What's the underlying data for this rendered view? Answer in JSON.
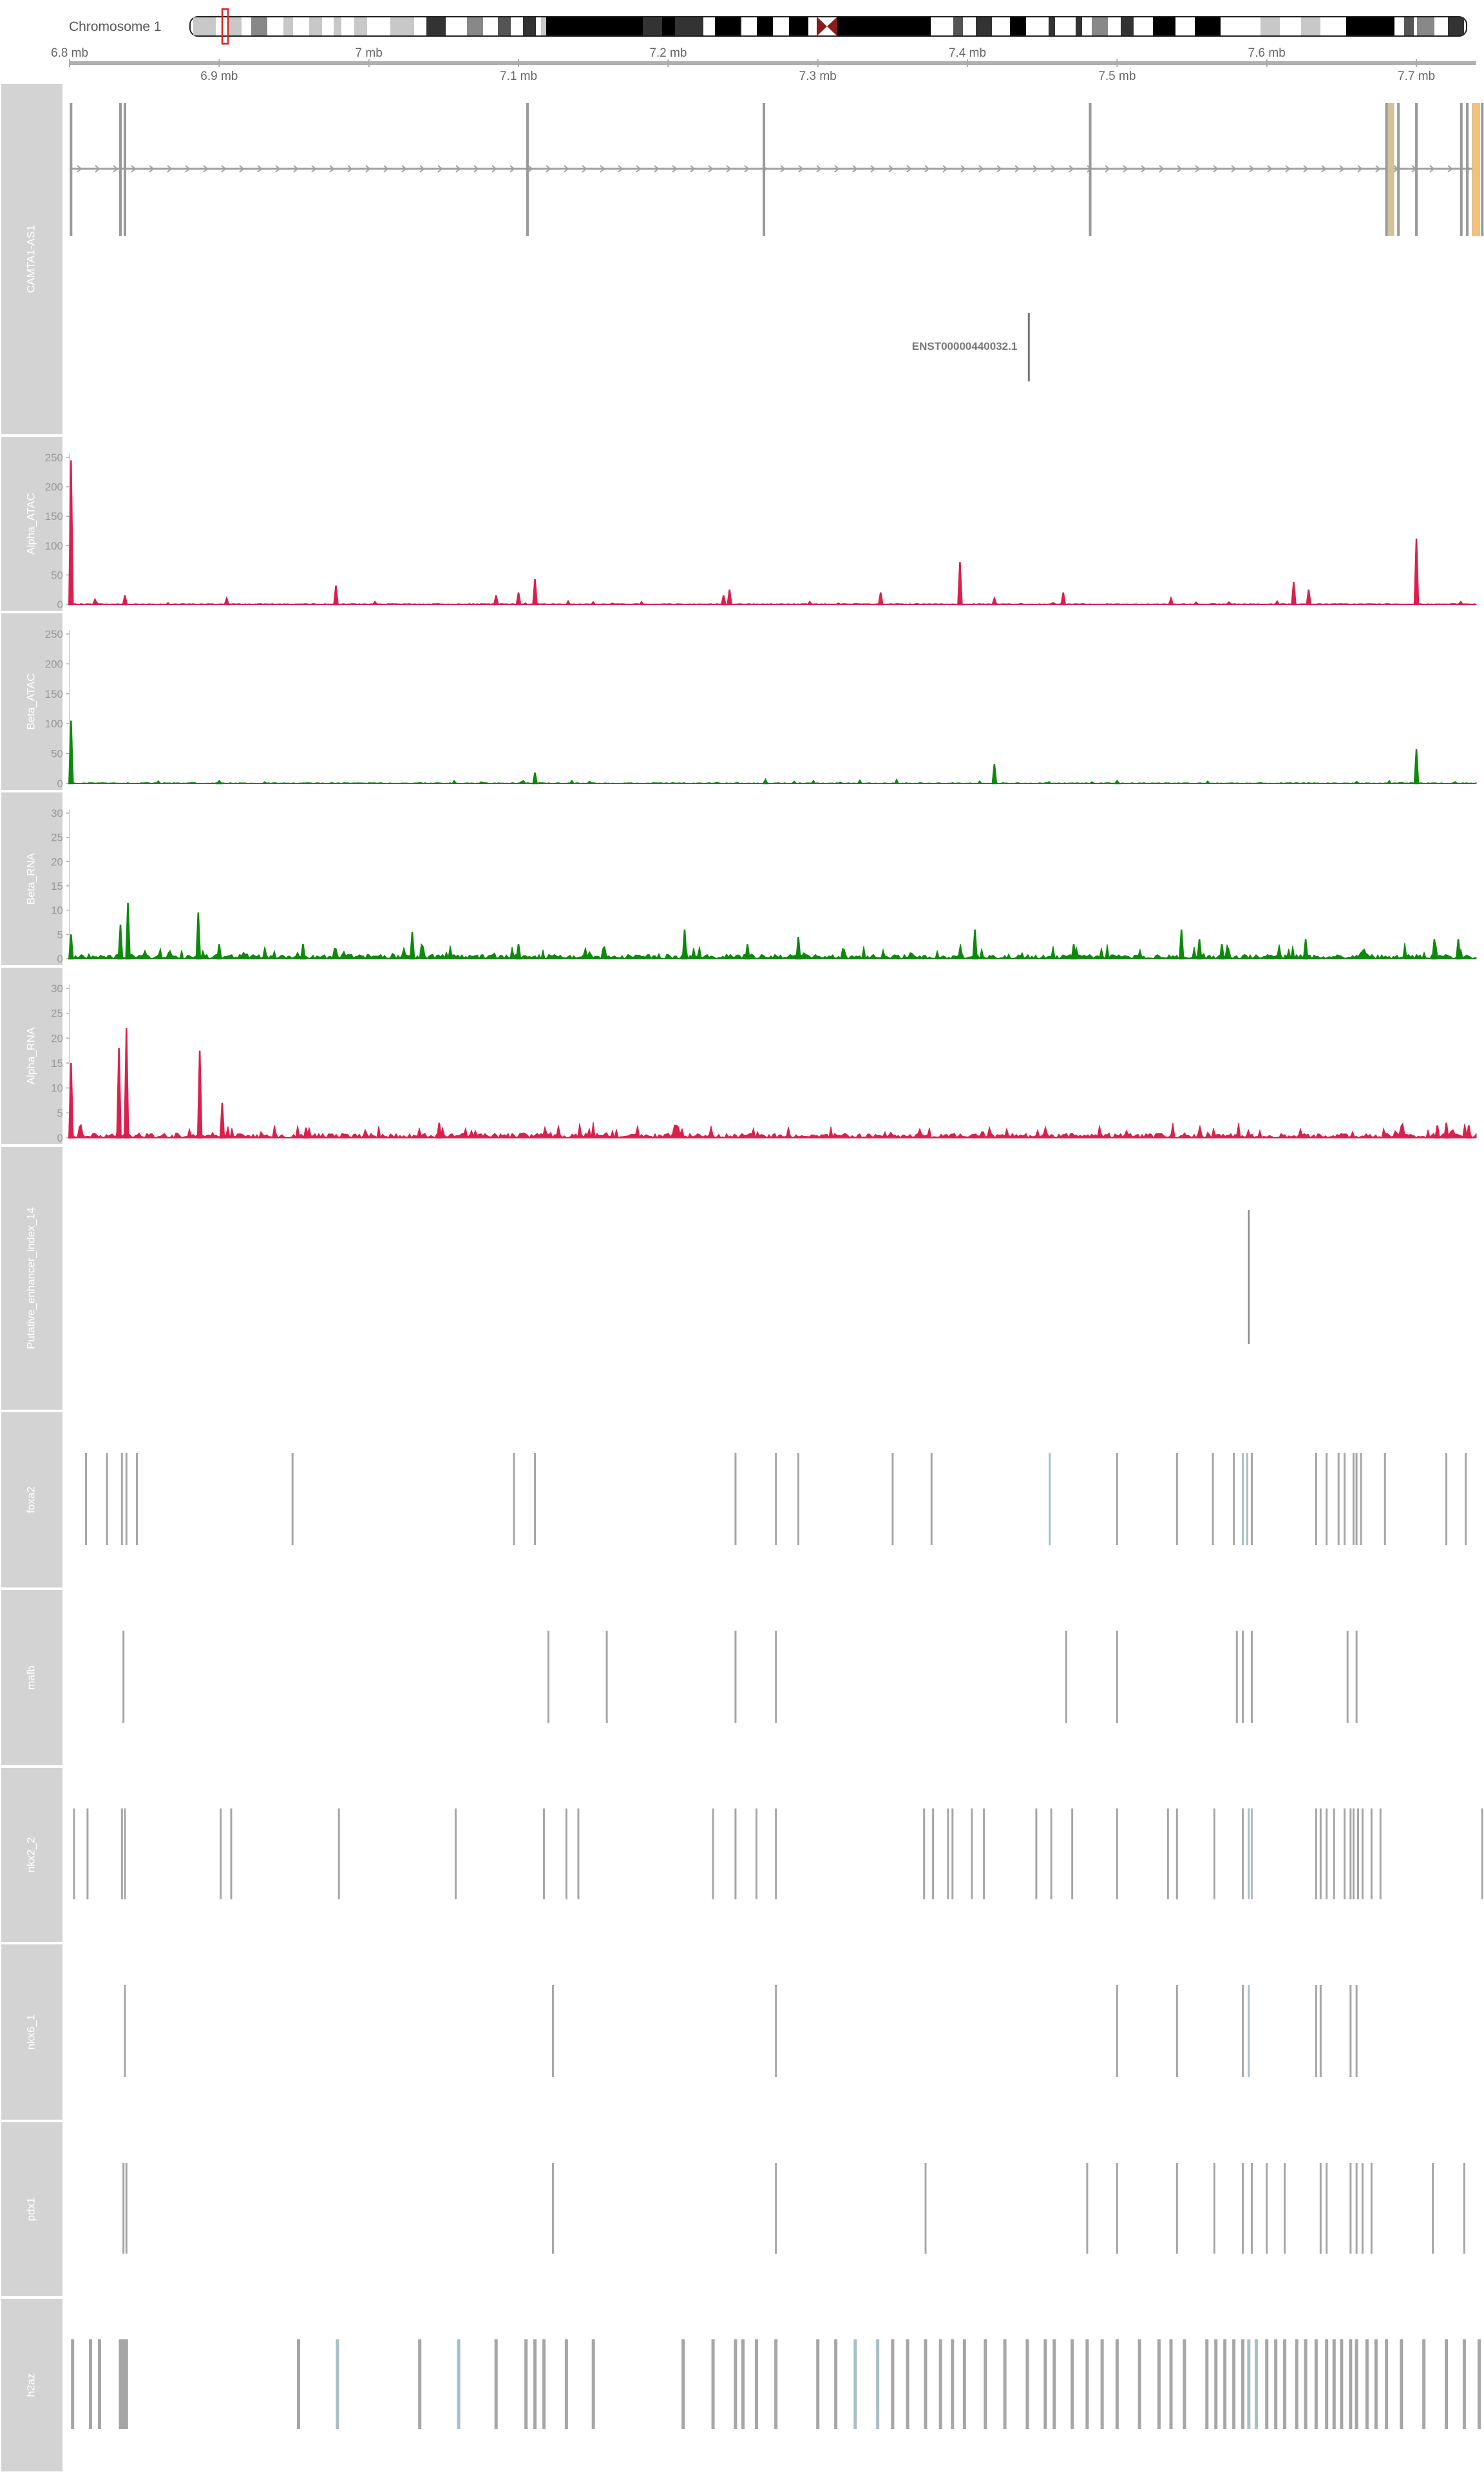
{
  "chromosome": {
    "label": "Chromosome 1",
    "start_mb": 6.8,
    "end_mb": 7.74,
    "ticks": [
      {
        "pos": 6.8,
        "label": "6.8 mb"
      },
      {
        "pos": 6.9,
        "label": "6.9 mb"
      },
      {
        "pos": 7.0,
        "label": "7 mb"
      },
      {
        "pos": 7.1,
        "label": "7.1 mb"
      },
      {
        "pos": 7.2,
        "label": "7.2 mb"
      },
      {
        "pos": 7.3,
        "label": "7.3 mb"
      },
      {
        "pos": 7.4,
        "label": "7.4 mb"
      },
      {
        "pos": 7.5,
        "label": "7.5 mb"
      },
      {
        "pos": 7.6,
        "label": "7.6 mb"
      },
      {
        "pos": 7.7,
        "label": "7.7 mb"
      }
    ]
  },
  "colors": {
    "panel_bg": "#d3d3d3",
    "panel_text": "#ffffff",
    "alpha": "#dc1f4c",
    "beta": "#0b8a0b",
    "feature": "#a6a6a6",
    "feature_blue": "#a9bfc8",
    "utr": "#f5c078",
    "enhancer_line": "#888888"
  },
  "tracks": [
    {
      "id": "gene",
      "label": "CAMTA1-AS1"
    },
    {
      "id": "alpha_atac",
      "label": "Alpha_ATAC"
    },
    {
      "id": "beta_atac",
      "label": "Beta_ATAC"
    },
    {
      "id": "beta_rna",
      "label": "Beta_RNA"
    },
    {
      "id": "alpha_rna",
      "label": "Alpha_RNA"
    },
    {
      "id": "enhancer",
      "label": "Putative_enhancer_index_14"
    },
    {
      "id": "foxa2",
      "label": "foxa2"
    },
    {
      "id": "mafb",
      "label": "mafb"
    },
    {
      "id": "nkx2_2",
      "label": "nkx2_2"
    },
    {
      "id": "nkx6_1",
      "label": "nkx6_1"
    },
    {
      "id": "pdx1",
      "label": "pdx1"
    },
    {
      "id": "h2az",
      "label": "h2az"
    }
  ],
  "gene_track": {
    "transcript_label": "ENST00000440032.1",
    "transcript_pos": 7.441,
    "exons": [
      6.801,
      6.834,
      6.837,
      7.106,
      7.264,
      7.482,
      7.68,
      7.683,
      7.688,
      7.7,
      7.73,
      7.734,
      7.738,
      7.744,
      7.75,
      7.755,
      7.758
    ],
    "utr_exons": [
      6.801,
      7.683
    ],
    "orange_exon": 7.74
  },
  "chart_data": [
    {
      "type": "area",
      "name": "Alpha_ATAC",
      "ylim": [
        0,
        250
      ],
      "yticks": [
        0,
        50,
        100,
        150,
        200,
        250
      ],
      "x": [
        6.801,
        6.817,
        6.837,
        6.905,
        6.978,
        7.085,
        7.1,
        7.111,
        7.237,
        7.241,
        7.342,
        7.395,
        7.418,
        7.464,
        7.536,
        7.618,
        7.628,
        7.7
      ],
      "values": [
        245,
        8,
        15,
        10,
        32,
        15,
        20,
        43,
        15,
        25,
        20,
        72,
        10,
        20,
        10,
        38,
        25,
        112
      ]
    },
    {
      "type": "area",
      "name": "Beta_ATAC",
      "ylim": [
        0,
        250
      ],
      "yticks": [
        0,
        50,
        100,
        150,
        200,
        250
      ],
      "x": [
        6.801,
        6.9,
        7.111,
        7.265,
        7.418,
        7.5,
        7.7
      ],
      "values": [
        105,
        4,
        18,
        6,
        32,
        4,
        57
      ]
    },
    {
      "type": "area",
      "name": "Beta_RNA",
      "ylim": [
        0,
        30
      ],
      "yticks": [
        0,
        5,
        10,
        15,
        20,
        25,
        30
      ],
      "x": [
        6.801,
        6.834,
        6.839,
        6.886,
        6.9,
        6.956,
        7.029,
        7.1,
        7.211,
        7.253,
        7.287,
        7.405,
        7.471,
        7.543,
        7.555,
        7.57,
        7.626,
        7.712,
        7.728
      ],
      "values": [
        5,
        7,
        11.5,
        9.5,
        3,
        3,
        5.5,
        3,
        6,
        3,
        4.5,
        6,
        3,
        6,
        4,
        3,
        4,
        4,
        4
      ]
    },
    {
      "type": "area",
      "name": "Alpha_RNA",
      "ylim": [
        0,
        30
      ],
      "yticks": [
        0,
        5,
        10,
        15,
        20,
        25,
        30
      ],
      "x": [
        6.801,
        6.833,
        6.838,
        6.887,
        6.902,
        6.958,
        7.047,
        7.714,
        7.72,
        7.735
      ],
      "values": [
        15,
        18,
        22,
        17.5,
        7,
        2,
        3,
        2.5,
        3,
        2.5
      ]
    }
  ],
  "enhancer": {
    "pos": 7.588
  },
  "tf_tracks": {
    "foxa2": [
      6.811,
      6.825,
      6.835,
      6.838,
      6.845,
      6.949,
      7.097,
      7.111,
      7.245,
      7.272,
      7.287,
      7.35,
      7.376,
      7.455,
      7.5,
      7.54,
      7.564,
      7.578,
      7.584,
      7.587,
      7.59,
      7.633,
      7.64,
      7.648,
      7.652,
      7.658,
      7.66,
      7.663,
      7.679,
      7.72,
      7.733
    ],
    "mafb": [
      6.836,
      7.12,
      7.159,
      7.245,
      7.272,
      7.466,
      7.5,
      7.58,
      7.584,
      7.59,
      7.654,
      7.66
    ],
    "nkx2_2": [
      6.803,
      6.812,
      6.835,
      6.837,
      6.901,
      6.908,
      6.98,
      7.058,
      7.117,
      7.132,
      7.14,
      7.23,
      7.245,
      7.259,
      7.272,
      7.371,
      7.377,
      7.387,
      7.39,
      7.403,
      7.411,
      7.446,
      7.456,
      7.47,
      7.5,
      7.534,
      7.54,
      7.565,
      7.584,
      7.588,
      7.59,
      7.633,
      7.636,
      7.64,
      7.645,
      7.652,
      7.656,
      7.658,
      7.661,
      7.664,
      7.67,
      7.676,
      7.744
    ],
    "nkx6_1": [
      6.837,
      7.123,
      7.272,
      7.5,
      7.54,
      7.584,
      7.588,
      7.633,
      7.636,
      7.656,
      7.66
    ],
    "pdx1": [
      6.836,
      6.838,
      7.123,
      7.272,
      7.372,
      7.48,
      7.5,
      7.54,
      7.565,
      7.584,
      7.59,
      7.6,
      7.612,
      7.636,
      7.64,
      7.656,
      7.66,
      7.664,
      7.67,
      7.711,
      7.732
    ],
    "h2az": [
      6.802,
      6.814,
      6.82,
      6.834,
      6.836,
      6.838,
      6.953,
      6.979,
      7.034,
      7.06,
      7.085,
      7.105,
      7.111,
      7.117,
      7.132,
      7.15,
      7.21,
      7.23,
      7.245,
      7.25,
      7.259,
      7.272,
      7.3,
      7.312,
      7.325,
      7.34,
      7.35,
      7.36,
      7.372,
      7.382,
      7.39,
      7.398,
      7.412,
      7.425,
      7.44,
      7.452,
      7.458,
      7.47,
      7.48,
      7.49,
      7.5,
      7.515,
      7.528,
      7.536,
      7.545,
      7.56,
      7.566,
      7.572,
      7.578,
      7.584,
      7.588,
      7.593,
      7.6,
      7.606,
      7.612,
      7.62,
      7.626,
      7.633,
      7.64,
      7.645,
      7.65,
      7.656,
      7.66,
      7.667,
      7.673,
      7.68,
      7.69,
      7.705,
      7.72,
      7.732,
      7.742
    ]
  },
  "tf_blue": {
    "foxa2": [
      7.455,
      7.584,
      7.587
    ],
    "nkx2_2": [
      7.588,
      7.59
    ],
    "nkx6_1": [
      7.588
    ],
    "h2az": [
      6.979,
      7.06,
      7.325,
      7.34,
      7.588,
      7.593
    ]
  }
}
